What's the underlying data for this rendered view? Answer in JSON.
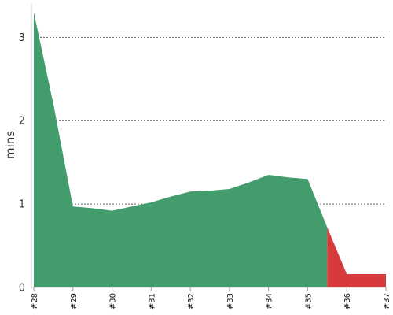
{
  "chart_data": {
    "type": "area",
    "ylabel": "mins",
    "xlabel": "",
    "title": "",
    "ylim": [
      0,
      3.4
    ],
    "yticks": [
      0,
      1,
      2,
      3
    ],
    "grid": "horizontal-dotted",
    "categories": [
      "#28",
      "#29",
      "#30",
      "#31",
      "#32",
      "#33",
      "#34",
      "#35",
      "#36",
      "#37"
    ],
    "x": [
      28,
      28.5,
      29,
      29.5,
      30,
      30.5,
      31,
      31.5,
      32,
      32.5,
      33,
      33.5,
      34,
      34.5,
      35,
      35.5,
      36,
      36.5,
      37
    ],
    "values": [
      3.3,
      2.2,
      0.97,
      0.95,
      0.92,
      0.97,
      1.02,
      1.09,
      1.15,
      1.16,
      1.18,
      1.26,
      1.35,
      1.32,
      1.3,
      0.72,
      0.16,
      0.16,
      0.16
    ],
    "series": [
      {
        "x_from": 28,
        "x_to": 35.5,
        "color": "#439c6c"
      },
      {
        "x_from": 35.5,
        "x_to": 37,
        "color": "#d63a3a"
      }
    ]
  }
}
